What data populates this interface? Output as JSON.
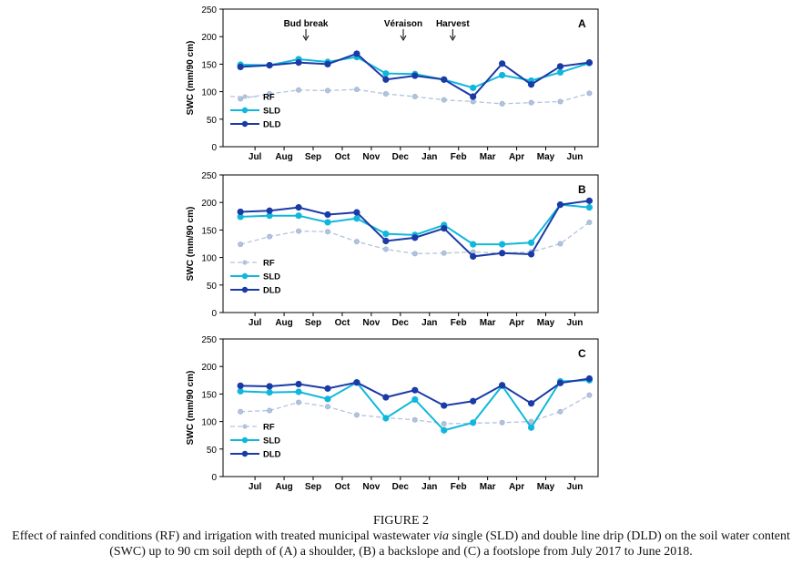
{
  "figure": {
    "title": "FIGURE 2",
    "caption_before_via": "Effect of rainfed conditions (RF) and irrigation with treated municipal wastewater",
    "caption_via": "via",
    "caption_after_via": "single (SLD) and double line drip (DLD) on the soil water content (SWC) up to 90 cm soil depth of (A) a shoulder, (B) a backslope and (C) a footslope from July 2017 to June 2018."
  },
  "colors": {
    "RF": "#b3c3dd",
    "SLD": "#10b7dc",
    "DLD": "#1a3aa6"
  },
  "chart_data": [
    {
      "type": "line",
      "panel_label": "A",
      "ylabel": "SWC (mm/90 cm)",
      "ylim": [
        0,
        250
      ],
      "yticks": [
        0,
        50,
        100,
        150,
        200,
        250
      ],
      "categories": [
        "Jul",
        "Aug",
        "Sep",
        "Oct",
        "Nov",
        "Dec",
        "Jan",
        "Feb",
        "Mar",
        "Apr",
        "May",
        "Jun"
      ],
      "x": [
        0.6,
        1.6,
        2.6,
        3.6,
        4.6,
        5.6,
        6.6,
        7.6,
        8.6,
        9.6,
        10.6,
        11.6,
        12.6
      ],
      "annotations": [
        {
          "text": "Bud break",
          "x": 2.85
        },
        {
          "text": "Véraison",
          "x": 6.2
        },
        {
          "text": "Harvest",
          "x": 7.9
        }
      ],
      "series": [
        {
          "name": "RF",
          "values": [
            87,
            96,
            103,
            102,
            104,
            96,
            91,
            85,
            82,
            78,
            80,
            82,
            97
          ]
        },
        {
          "name": "SLD",
          "values": [
            149,
            148,
            159,
            154,
            163,
            133,
            132,
            122,
            107,
            130,
            120,
            135,
            152
          ]
        },
        {
          "name": "DLD",
          "values": [
            145,
            148,
            153,
            150,
            169,
            122,
            129,
            122,
            91,
            151,
            113,
            146,
            153
          ]
        }
      ],
      "legend": [
        "RF",
        "SLD",
        "DLD"
      ],
      "legend_position": "bottom-left"
    },
    {
      "type": "line",
      "panel_label": "B",
      "ylabel": "SWC (mm/90 cm)",
      "ylim": [
        0,
        250
      ],
      "yticks": [
        0,
        50,
        100,
        150,
        200,
        250
      ],
      "categories": [
        "Jul",
        "Aug",
        "Sep",
        "Oct",
        "Nov",
        "Dec",
        "Jan",
        "Feb",
        "Mar",
        "Apr",
        "May",
        "Jun"
      ],
      "x": [
        0.6,
        1.6,
        2.6,
        3.6,
        4.6,
        5.6,
        6.6,
        7.6,
        8.6,
        9.6,
        10.6,
        11.6,
        12.6
      ],
      "series": [
        {
          "name": "RF",
          "values": [
            124,
            138,
            148,
            147,
            129,
            115,
            107,
            108,
            110,
            108,
            110,
            125,
            164
          ]
        },
        {
          "name": "SLD",
          "values": [
            174,
            176,
            176,
            164,
            171,
            143,
            141,
            159,
            124,
            124,
            127,
            196,
            191
          ]
        },
        {
          "name": "DLD",
          "values": [
            183,
            185,
            191,
            178,
            182,
            130,
            136,
            153,
            102,
            108,
            106,
            196,
            203
          ]
        }
      ],
      "legend": [
        "RF",
        "SLD",
        "DLD"
      ],
      "legend_position": "bottom-left"
    },
    {
      "type": "line",
      "panel_label": "C",
      "ylabel": "SWC (mm/90 cm)",
      "ylim": [
        0,
        250
      ],
      "yticks": [
        0,
        50,
        100,
        150,
        200,
        250
      ],
      "categories": [
        "Jul",
        "Aug",
        "Sep",
        "Oct",
        "Nov",
        "Dec",
        "Jan",
        "Feb",
        "Mar",
        "Apr",
        "May",
        "Jun"
      ],
      "x": [
        0.6,
        1.6,
        2.6,
        3.6,
        4.6,
        5.6,
        6.6,
        7.6,
        8.6,
        9.6,
        10.6,
        11.6,
        12.6
      ],
      "series": [
        {
          "name": "RF",
          "values": [
            118,
            120,
            135,
            127,
            112,
            107,
            103,
            96,
            97,
            98,
            100,
            118,
            148
          ]
        },
        {
          "name": "SLD",
          "values": [
            155,
            153,
            154,
            141,
            171,
            106,
            140,
            84,
            98,
            165,
            89,
            173,
            175
          ]
        },
        {
          "name": "DLD",
          "values": [
            165,
            164,
            168,
            160,
            171,
            144,
            157,
            129,
            137,
            166,
            133,
            170,
            178
          ]
        }
      ],
      "legend": [
        "RF",
        "SLD",
        "DLD"
      ],
      "legend_position": "bottom-left"
    }
  ]
}
